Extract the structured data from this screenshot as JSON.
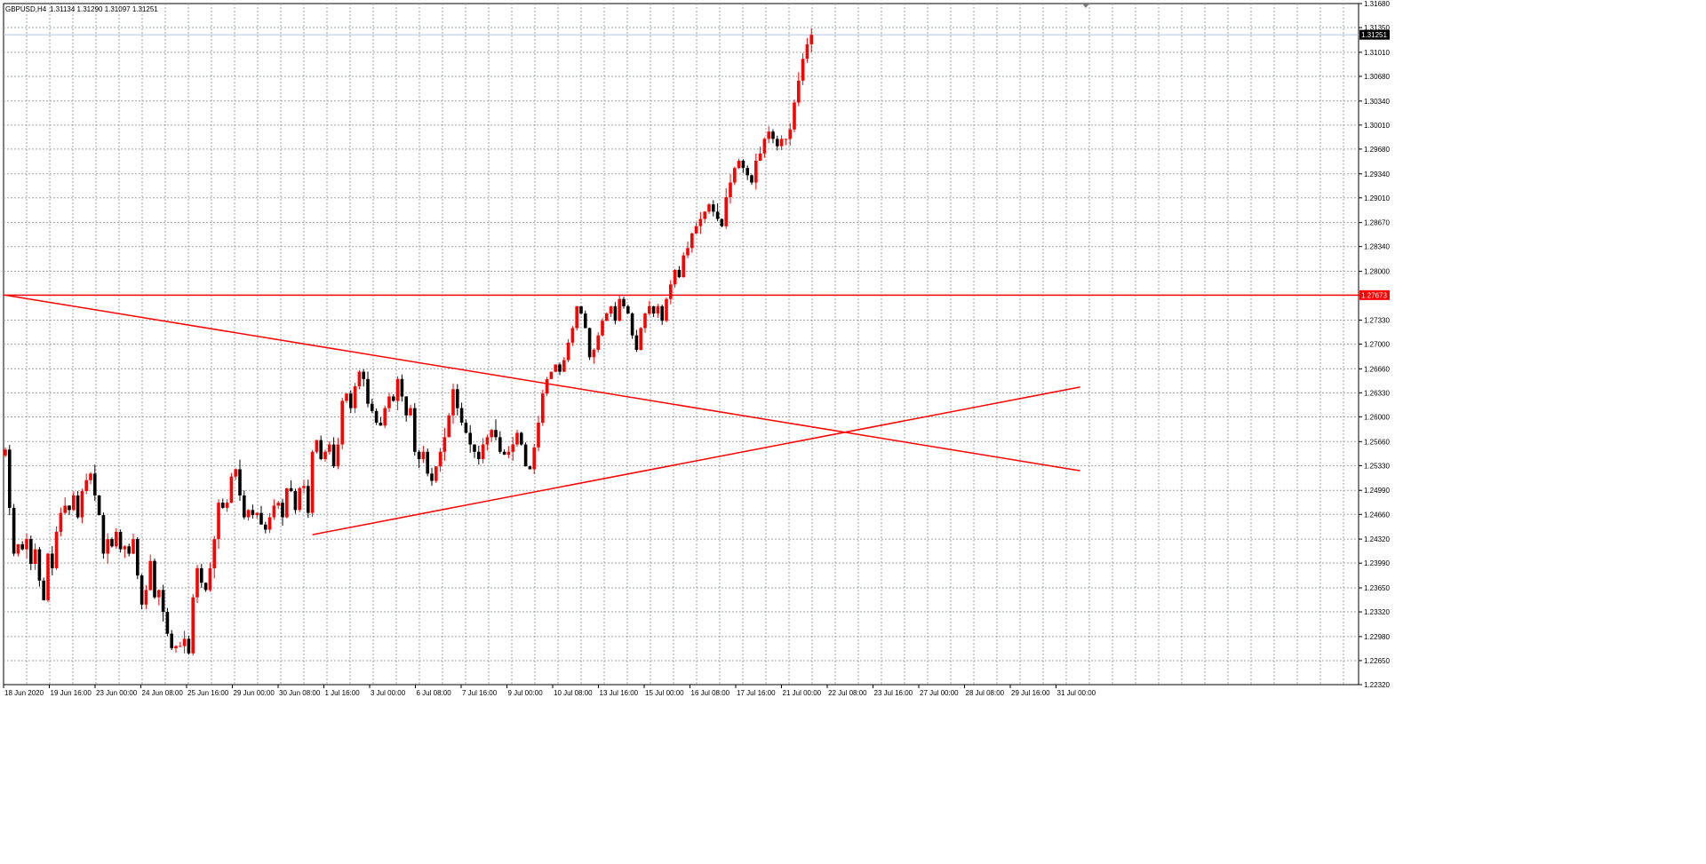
{
  "window": {
    "symbol_label": "GBPUSD,H4",
    "ohlc_label": "1.31134 1.31290 1.31097 1.31251"
  },
  "chart_data": {
    "type": "candlestick",
    "symbol": "GBPUSD",
    "timeframe": "H4",
    "price_axis": {
      "ylim": [
        1.2232,
        1.3168
      ],
      "ticks": [
        "1.31680",
        "1.31350",
        "1.31010",
        "1.30680",
        "1.30340",
        "1.30010",
        "1.29680",
        "1.29340",
        "1.29010",
        "1.28670",
        "1.28340",
        "1.28000",
        "1.27670",
        "1.27330",
        "1.27000",
        "1.26660",
        "1.26330",
        "1.26000",
        "1.25660",
        "1.25330",
        "1.24990",
        "1.24660",
        "1.24320",
        "1.23990",
        "1.23650",
        "1.23320",
        "1.22980",
        "1.22650",
        "1.22320"
      ]
    },
    "time_axis": {
      "labels": [
        "18 Jun 2020",
        "19 Jun 16:00",
        "23 Jun 00:00",
        "24 Jun 08:00",
        "25 Jun 16:00",
        "29 Jun 00:00",
        "30 Jun 08:00",
        "1 Jul 16:00",
        "3 Jul 00:00",
        "6 Jul 08:00",
        "7 Jul 16:00",
        "9 Jul 00:00",
        "10 Jul 08:00",
        "13 Jul 16:00",
        "15 Jul 00:00",
        "16 Jul 08:00",
        "17 Jul 16:00",
        "21 Jul 00:00",
        "22 Jul 08:00",
        "23 Jul 16:00",
        "27 Jul 00:00",
        "28 Jul 08:00",
        "29 Jul 16:00",
        "31 Jul 00:00"
      ]
    },
    "closes": [
      1.2555,
      1.2475,
      1.2412,
      1.2425,
      1.2418,
      1.2432,
      1.2398,
      1.2418,
      1.2375,
      1.2348,
      1.2412,
      1.2392,
      1.2442,
      1.2468,
      1.2478,
      1.2472,
      1.2492,
      1.2462,
      1.2498,
      1.2513,
      1.2522,
      1.2492,
      1.2465,
      1.2412,
      1.2432,
      1.2422,
      1.2442,
      1.2418,
      1.2422,
      1.2412,
      1.2432,
      1.2382,
      1.2342,
      1.2362,
      1.2402,
      1.2352,
      1.2362,
      1.2332,
      1.2302,
      1.2282,
      1.2285,
      1.2285,
      1.2295,
      1.2275,
      1.2352,
      1.2392,
      1.2372,
      1.2362,
      1.2392,
      1.2432,
      1.2482,
      1.2475,
      1.2482,
      1.2518,
      1.2528,
      1.2492,
      1.2462,
      1.2472,
      1.2465,
      1.2468,
      1.2452,
      1.2445,
      1.2462,
      1.2478,
      1.2482,
      1.2462,
      1.2502,
      1.2498,
      1.2472,
      1.2502,
      1.2505,
      1.2468,
      1.2552,
      1.2568,
      1.2542,
      1.2552,
      1.2562,
      1.2532,
      1.2562,
      1.2622,
      1.2632,
      1.2612,
      1.2642,
      1.2662,
      1.2652,
      1.2618,
      1.2608,
      1.2592,
      1.2588,
      1.2612,
      1.2628,
      1.2622,
      1.2652,
      1.2628,
      1.2602,
      1.2612,
      1.2552,
      1.2542,
      1.2552,
      1.2522,
      1.2512,
      1.2532,
      1.2552,
      1.2572,
      1.2602,
      1.2638,
      1.2612,
      1.2592,
      1.2578,
      1.2562,
      1.2552,
      1.2542,
      1.2562,
      1.2572,
      1.2582,
      1.2572,
      1.2552,
      1.2548,
      1.2552,
      1.2562,
      1.2578,
      1.2562,
      1.2532,
      1.2528,
      1.2558,
      1.2592,
      1.2632,
      1.2652,
      1.2662,
      1.2672,
      1.2662,
      1.2678,
      1.2702,
      1.2722,
      1.2752,
      1.2742,
      1.2722,
      1.2682,
      1.2692,
      1.2712,
      1.2732,
      1.2742,
      1.2752,
      1.2732,
      1.2762,
      1.2752,
      1.2742,
      1.2712,
      1.2692,
      1.2722,
      1.2742,
      1.2752,
      1.2742,
      1.2752,
      1.2732,
      1.2762,
      1.2782,
      1.2802,
      1.2792,
      1.2822,
      1.2832,
      1.2852,
      1.2862,
      1.2872,
      1.2882,
      1.2892,
      1.2882,
      1.2872,
      1.2862,
      1.2902,
      1.2922,
      1.2942,
      1.2952,
      1.2942,
      1.2932,
      1.2922,
      1.2952,
      1.2962,
      1.2982,
      1.2992,
      1.2982,
      1.2972,
      1.2982,
      1.2982,
      1.2995,
      1.3032,
      1.3062,
      1.3092,
      1.3112,
      1.3125
    ]
  },
  "annotations": {
    "horizontal_line_value": 1.27673,
    "horizontal_line_label": "1.27673",
    "bid_line_value": 1.31251,
    "bid_line_label": "1.31251",
    "descending_trendline": {
      "from": [
        0,
        1.27673
      ],
      "to": [
        252,
        1.2526
      ]
    },
    "ascending_trendline": {
      "from": [
        72,
        1.24381
      ],
      "to": [
        252,
        1.2641
      ]
    }
  },
  "colors": {
    "bull": "#ff0000",
    "bear": "#000000",
    "grid": "#9ea3a8",
    "annotation": "#ff0000",
    "bid_line": "#b0c4de",
    "label_bg": "#000000",
    "label_text": "#ffffff"
  }
}
